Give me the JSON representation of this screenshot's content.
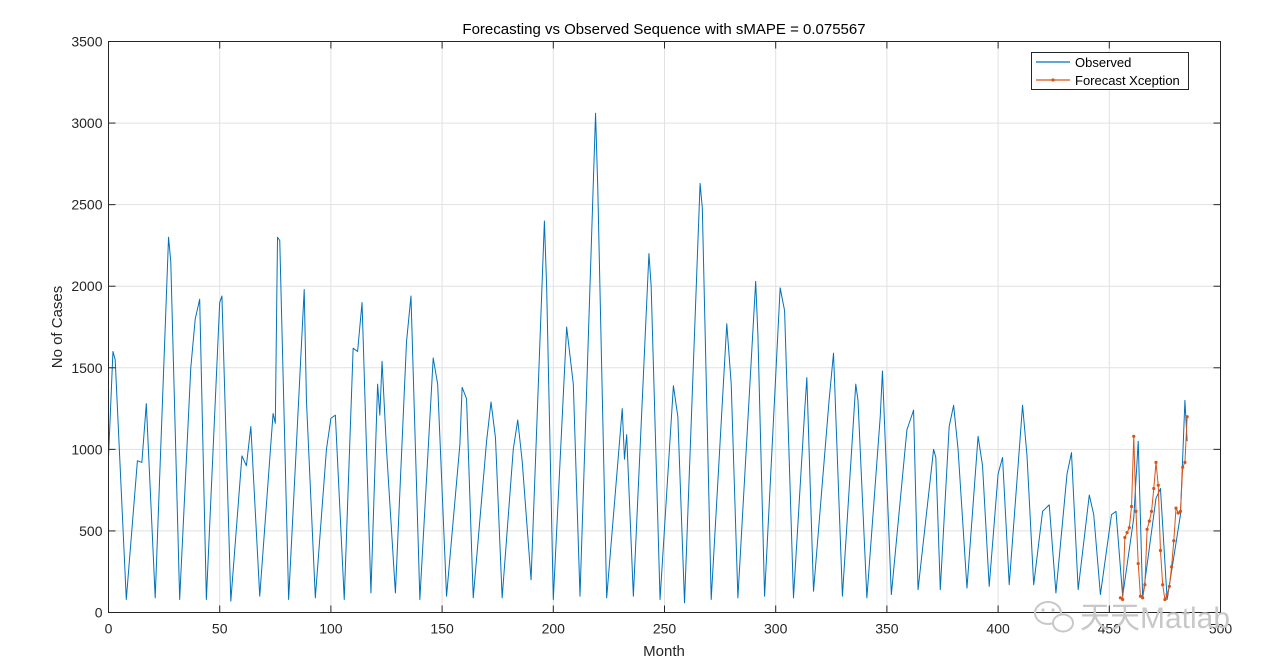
{
  "chart_data": {
    "type": "line",
    "title": "Forecasting vs Observed Sequence with sMAPE = 0.075567",
    "xlabel": "Month",
    "ylabel": "No of Cases",
    "xlim": [
      0,
      500
    ],
    "ylim": [
      0,
      3500
    ],
    "xticks": [
      0,
      50,
      100,
      150,
      200,
      250,
      300,
      350,
      400,
      450,
      500
    ],
    "yticks": [
      0,
      500,
      1000,
      1500,
      2000,
      2500,
      3000,
      3500
    ],
    "grid": true,
    "legend_position": "top-right",
    "colors": {
      "observed": "#0072BD",
      "forecast": "#D95319",
      "grid": "#E1E1E1",
      "axis": "#262626"
    },
    "watermark": "天天Matlab",
    "series": [
      {
        "name": "Observed",
        "peaks": [
          [
            0,
            950
          ],
          [
            2,
            1600
          ],
          [
            3,
            1550
          ],
          [
            8,
            80
          ],
          [
            13,
            930
          ],
          [
            15,
            920
          ],
          [
            17,
            1280
          ],
          [
            21,
            90
          ],
          [
            27,
            2300
          ],
          [
            28,
            2150
          ],
          [
            32,
            80
          ],
          [
            37,
            1500
          ],
          [
            39,
            1800
          ],
          [
            41,
            1920
          ],
          [
            44,
            80
          ],
          [
            50,
            1900
          ],
          [
            51,
            1940
          ],
          [
            55,
            70
          ],
          [
            60,
            960
          ],
          [
            62,
            900
          ],
          [
            64,
            1140
          ],
          [
            68,
            100
          ],
          [
            74,
            1220
          ],
          [
            75,
            1160
          ],
          [
            76,
            2300
          ],
          [
            77,
            2280
          ],
          [
            81,
            80
          ],
          [
            88,
            1980
          ],
          [
            89,
            1300
          ],
          [
            93,
            90
          ],
          [
            98,
            1000
          ],
          [
            100,
            1190
          ],
          [
            102,
            1210
          ],
          [
            106,
            80
          ],
          [
            110,
            1620
          ],
          [
            112,
            1600
          ],
          [
            114,
            1900
          ],
          [
            118,
            120
          ],
          [
            121,
            1400
          ],
          [
            122,
            1210
          ],
          [
            123,
            1540
          ],
          [
            125,
            1000
          ],
          [
            129,
            120
          ],
          [
            134,
            1660
          ],
          [
            136,
            1940
          ],
          [
            140,
            80
          ],
          [
            146,
            1560
          ],
          [
            148,
            1400
          ],
          [
            152,
            100
          ],
          [
            158,
            1030
          ],
          [
            159,
            1380
          ],
          [
            161,
            1310
          ],
          [
            164,
            90
          ],
          [
            170,
            1050
          ],
          [
            172,
            1290
          ],
          [
            174,
            1070
          ],
          [
            177,
            90
          ],
          [
            182,
            1000
          ],
          [
            184,
            1180
          ],
          [
            186,
            930
          ],
          [
            190,
            200
          ],
          [
            196,
            2400
          ],
          [
            197,
            2000
          ],
          [
            200,
            80
          ],
          [
            206,
            1750
          ],
          [
            209,
            1400
          ],
          [
            212,
            100
          ],
          [
            219,
            3060
          ],
          [
            220,
            2600
          ],
          [
            224,
            90
          ],
          [
            231,
            1250
          ],
          [
            232,
            940
          ],
          [
            233,
            1090
          ],
          [
            236,
            100
          ],
          [
            243,
            2200
          ],
          [
            244,
            2000
          ],
          [
            248,
            80
          ],
          [
            254,
            1390
          ],
          [
            256,
            1200
          ],
          [
            259,
            60
          ],
          [
            266,
            2630
          ],
          [
            267,
            2480
          ],
          [
            271,
            80
          ],
          [
            278,
            1770
          ],
          [
            280,
            1400
          ],
          [
            283,
            90
          ],
          [
            291,
            2030
          ],
          [
            292,
            1700
          ],
          [
            295,
            100
          ],
          [
            302,
            1990
          ],
          [
            304,
            1850
          ],
          [
            308,
            90
          ],
          [
            313,
            1230
          ],
          [
            314,
            1440
          ],
          [
            317,
            130
          ],
          [
            324,
            1300
          ],
          [
            326,
            1590
          ],
          [
            330,
            100
          ],
          [
            336,
            1400
          ],
          [
            337,
            1300
          ],
          [
            341,
            90
          ],
          [
            347,
            1200
          ],
          [
            348,
            1480
          ],
          [
            352,
            110
          ],
          [
            359,
            1120
          ],
          [
            362,
            1240
          ],
          [
            364,
            140
          ],
          [
            371,
            1000
          ],
          [
            372,
            950
          ],
          [
            374,
            140
          ],
          [
            378,
            1140
          ],
          [
            380,
            1270
          ],
          [
            382,
            1000
          ],
          [
            386,
            150
          ],
          [
            391,
            1080
          ],
          [
            393,
            900
          ],
          [
            396,
            160
          ],
          [
            400,
            850
          ],
          [
            402,
            950
          ],
          [
            405,
            170
          ],
          [
            411,
            1270
          ],
          [
            413,
            960
          ],
          [
            416,
            170
          ],
          [
            420,
            620
          ],
          [
            423,
            660
          ],
          [
            426,
            120
          ],
          [
            431,
            850
          ],
          [
            433,
            980
          ],
          [
            436,
            140
          ],
          [
            441,
            720
          ],
          [
            443,
            600
          ],
          [
            446,
            110
          ],
          [
            451,
            600
          ],
          [
            453,
            620
          ],
          [
            456,
            100
          ],
          [
            461,
            580
          ],
          [
            463,
            1050
          ],
          [
            465,
            90
          ],
          [
            471,
            700
          ],
          [
            473,
            760
          ],
          [
            476,
            80
          ],
          [
            482,
            600
          ],
          [
            484,
            1300
          ],
          [
            485,
            1050
          ]
        ]
      },
      {
        "name": "Forecast Xception",
        "x": [
          455,
          456,
          457,
          458,
          459,
          460,
          461,
          462,
          463,
          464,
          465,
          466,
          467,
          468,
          469,
          470,
          471,
          472,
          473,
          474,
          475,
          476,
          477,
          478,
          479,
          480,
          481,
          482,
          483,
          484,
          485
        ],
        "values": [
          90,
          80,
          460,
          490,
          520,
          650,
          1080,
          620,
          300,
          100,
          90,
          170,
          510,
          560,
          620,
          760,
          920,
          780,
          380,
          170,
          80,
          110,
          160,
          280,
          440,
          640,
          610,
          620,
          890,
          920,
          1200
        ]
      }
    ]
  }
}
